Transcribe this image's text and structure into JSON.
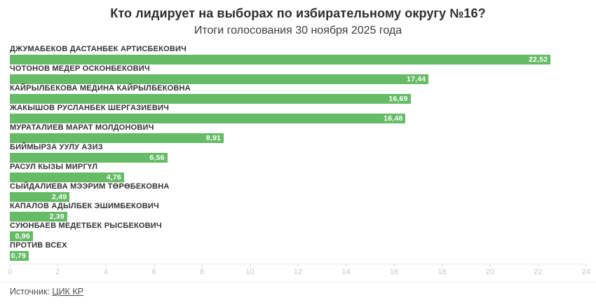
{
  "chart_data": {
    "type": "bar",
    "orientation": "horizontal",
    "title": "Кто лидирует на выборах по избирательному округу №16?",
    "subtitle": "Итоги голосования 30 ноября 2025 года",
    "categories": [
      "ДЖУМАБЕКОВ ДАСТАНБЕК АРТИСБЕКОВИЧ",
      "ЧОТОНОВ МЕДЕР ОСКОНБЕКОВИЧ",
      "КАЙРЫЛБЕКОВА МЕДИНА КАЙРЫЛБЕКОВНА",
      "ЖАКЫШОВ РУСЛАНБЕК ШЕРГАЗИЕВИЧ",
      "МУРАТАЛИЕВ МАРАТ МОЛДОНОВИЧ",
      "БИЙМЫРЗА УУЛУ АЗИЗ",
      "РАСУЛ КЫЗЫ МИРГҮЛ",
      "СЫЙДАЛИЕВА МЭЭРИМ ТӨРӨБЕКОВНА",
      "КАПАЛОВ АДЫЛБЕК ЭШИМБЕКОВИЧ",
      "СУЮНБАЕВ МЕДЕТБЕК РЫСБЕКОВИЧ",
      "ПРОТИВ ВСЕХ"
    ],
    "values": [
      22.52,
      17.44,
      16.69,
      16.48,
      8.91,
      6.56,
      4.76,
      2.49,
      2.39,
      0.96,
      0.79
    ],
    "value_labels": [
      "22,52",
      "17,44",
      "16,69",
      "16,48",
      "8,91",
      "6,56",
      "4,76",
      "2,49",
      "2,39",
      "0,96",
      "0,79"
    ],
    "value_unit": "percent",
    "xlim": [
      0,
      24
    ],
    "x_ticks": [
      0,
      2,
      4,
      6,
      8,
      10,
      12,
      14,
      16,
      18,
      20,
      22,
      24
    ],
    "grid": false,
    "legend": false
  },
  "colors": {
    "bar": "#66bb66",
    "bar_value_text": "#ffffff",
    "label_text": "#333333",
    "axis_text": "#c7c7c7",
    "title_text": "#2e2e2e"
  },
  "footer": {
    "source_label": "Источник:",
    "source_link_text": "ЦИК КР"
  }
}
